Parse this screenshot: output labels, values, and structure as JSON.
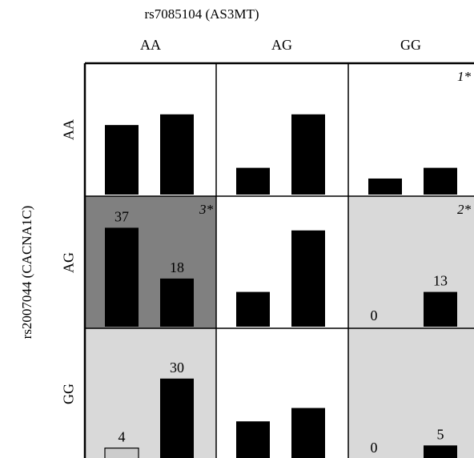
{
  "chart_data": {
    "type": "bar",
    "title": "rs7085104 (AS3MT)",
    "ylabel": "rs2007044 (CACNA1C)",
    "columns": [
      "AA",
      "AG",
      "GG"
    ],
    "rows": [
      "AA",
      "AG",
      "GG"
    ],
    "colors": {
      "bar": "#000000",
      "small_bar": "#cccccc",
      "cell_dark": "#808080",
      "cell_light": "#d9d9d9",
      "cell_white": "#ffffff",
      "grid": "#000000"
    },
    "cells": [
      {
        "row": "AA",
        "col": "AA",
        "bg": "white",
        "tag": "",
        "values": [
          26,
          30
        ],
        "labels": [
          "",
          ""
        ]
      },
      {
        "row": "AA",
        "col": "AG",
        "bg": "white",
        "tag": "",
        "values": [
          10,
          30
        ],
        "labels": [
          "",
          ""
        ]
      },
      {
        "row": "AA",
        "col": "GG",
        "bg": "white",
        "tag": "1*",
        "values": [
          6,
          10
        ],
        "labels": [
          "",
          ""
        ]
      },
      {
        "row": "AG",
        "col": "AA",
        "bg": "dark",
        "tag": "3*",
        "values": [
          37,
          18
        ],
        "labels": [
          "37",
          "18"
        ]
      },
      {
        "row": "AG",
        "col": "AG",
        "bg": "white",
        "tag": "",
        "values": [
          13,
          36
        ],
        "labels": [
          "",
          ""
        ]
      },
      {
        "row": "AG",
        "col": "GG",
        "bg": "light",
        "tag": "2*",
        "values": [
          0,
          13
        ],
        "labels": [
          "0",
          "13"
        ]
      },
      {
        "row": "GG",
        "col": "AA",
        "bg": "light",
        "tag": "",
        "values": [
          4,
          30
        ],
        "labels": [
          "4",
          "30"
        ]
      },
      {
        "row": "GG",
        "col": "AG",
        "bg": "white",
        "tag": "",
        "values": [
          14,
          19
        ],
        "labels": [
          "",
          ""
        ]
      },
      {
        "row": "GG",
        "col": "GG",
        "bg": "light",
        "tag": "",
        "values": [
          0,
          5
        ],
        "labels": [
          "0",
          "5"
        ]
      }
    ],
    "ylim": [
      0,
      45
    ],
    "legend": "none",
    "grid": false
  }
}
